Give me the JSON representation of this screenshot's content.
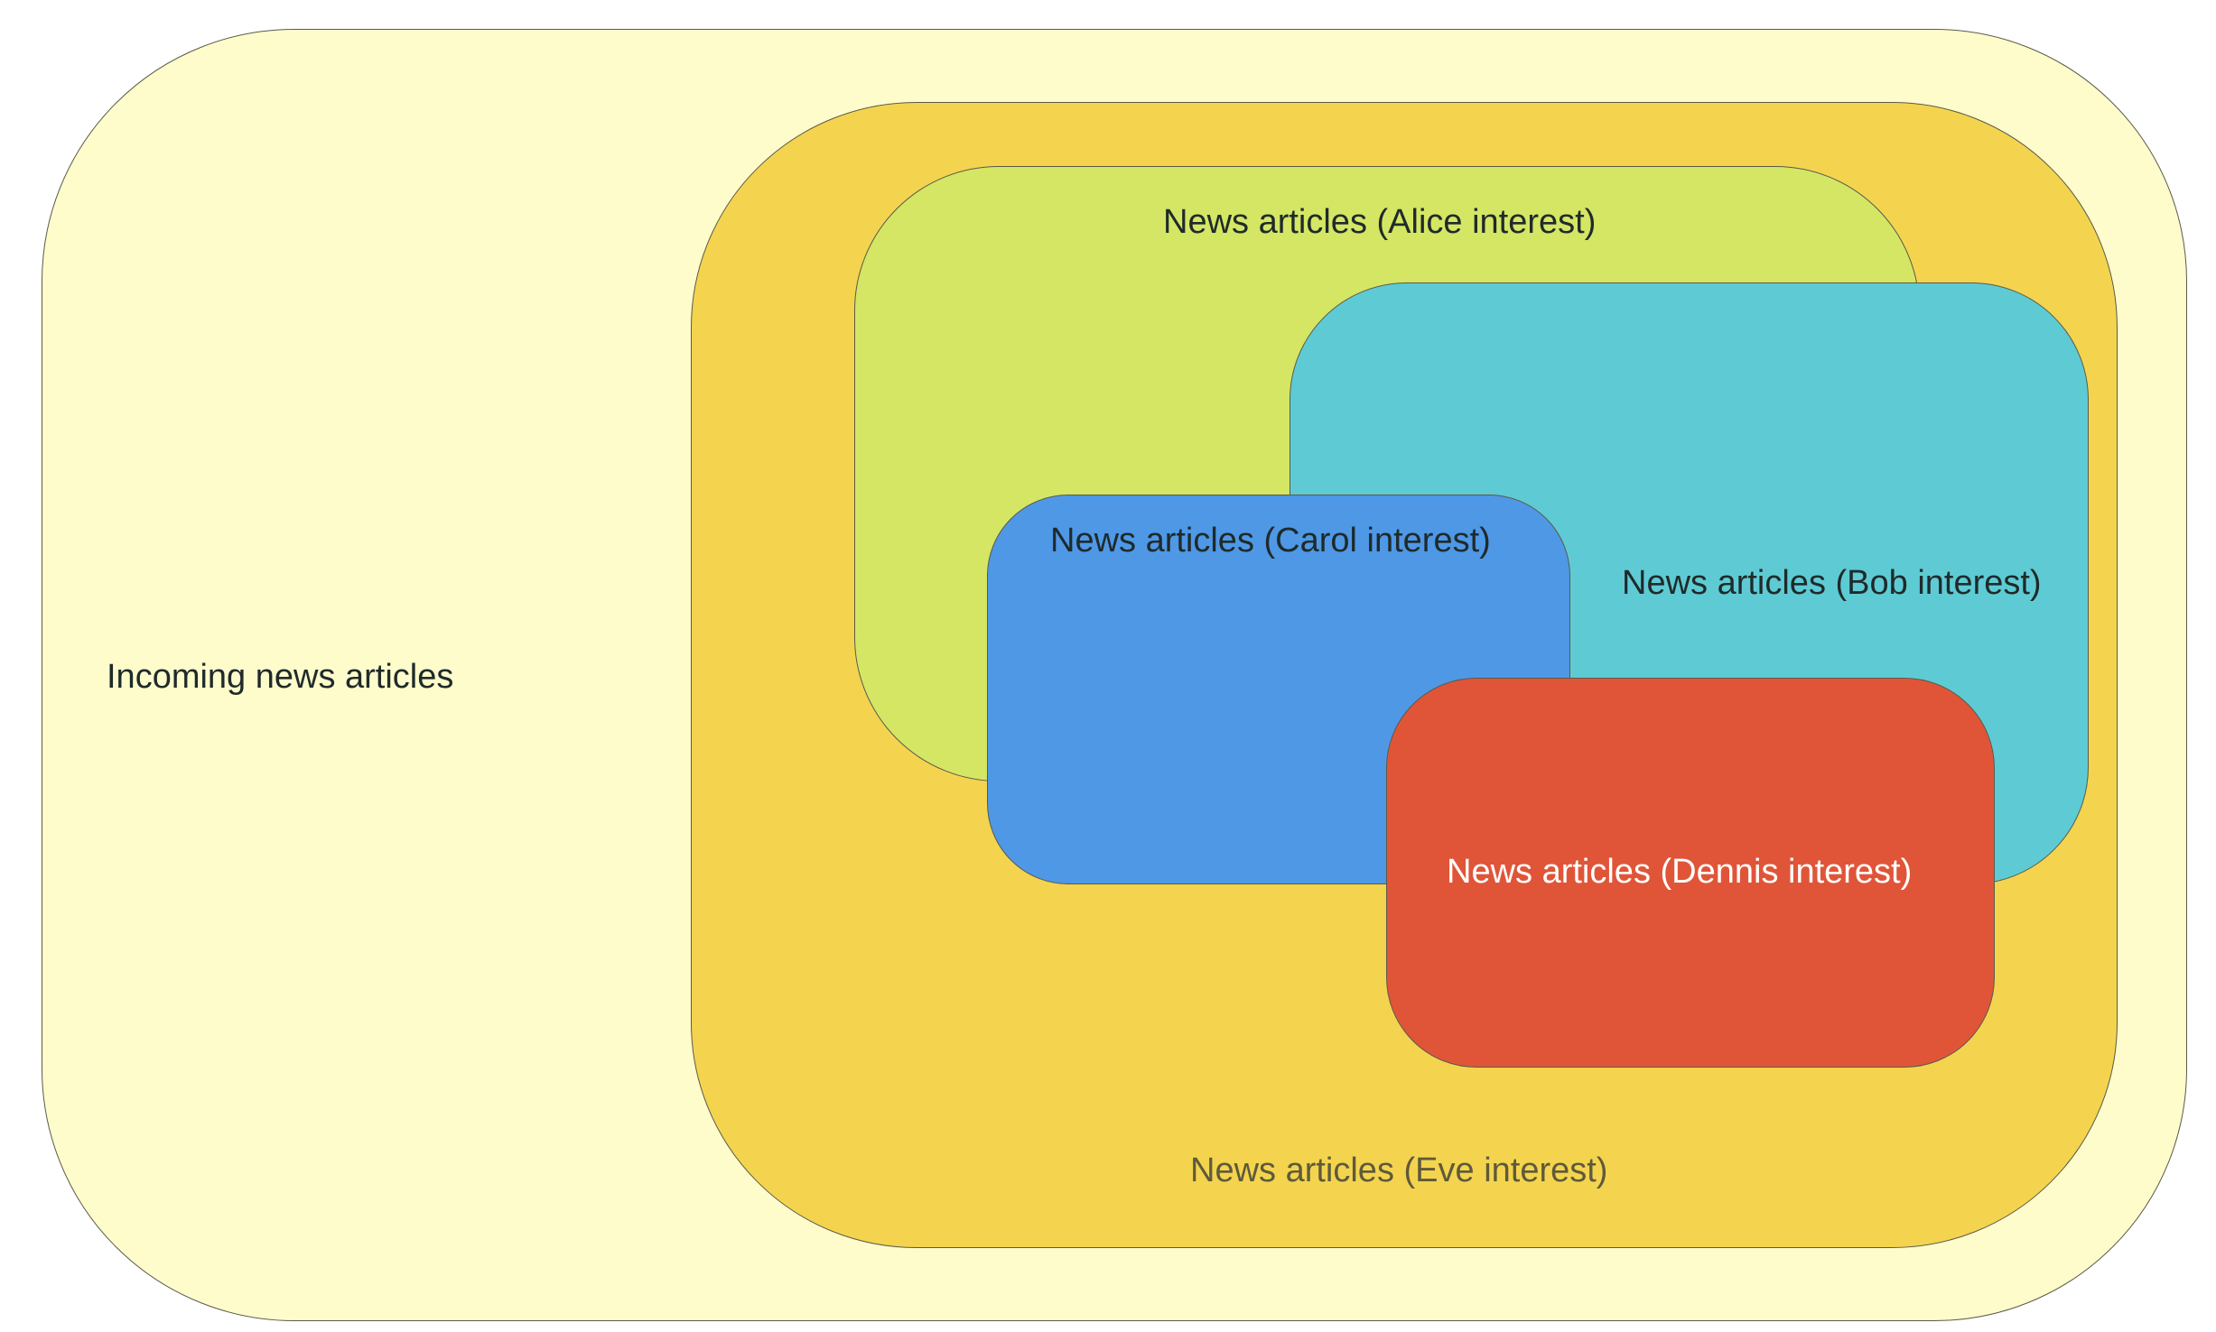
{
  "diagram": {
    "regions": {
      "incoming": {
        "label": "Incoming news articles",
        "color": "#fffccb"
      },
      "eve": {
        "label": "News articles (Eve interest)",
        "color": "#f4d44f"
      },
      "alice": {
        "label": "News articles (Alice interest)",
        "color": "#d4e664"
      },
      "bob": {
        "label": "News articles (Bob interest)",
        "color": "#5ecbd4"
      },
      "carol": {
        "label": "News articles (Carol interest)",
        "color": "#4e98e6"
      },
      "dennis": {
        "label": "News articles (Dennis interest)",
        "color": "#e05538"
      }
    }
  }
}
